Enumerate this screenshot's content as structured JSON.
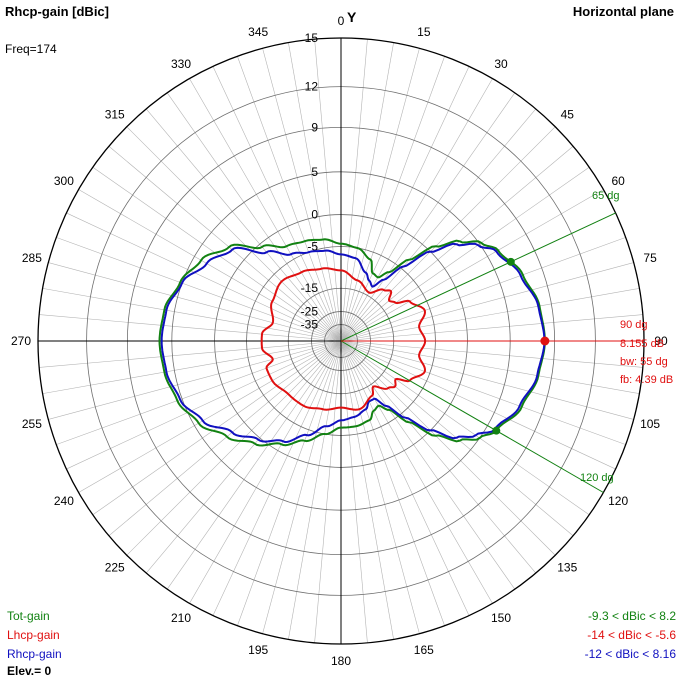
{
  "title": "Rhcp-gain [dBic]",
  "plane_label": "Horizontal plane",
  "freq_label": "Freq=174",
  "elev_label": "Elev.= 0",
  "y_axis_label": "Y",
  "colors": {
    "tot": "#128212",
    "lhcp": "#e01010",
    "rhcp": "#1010c0",
    "grid": "#b4b4b4",
    "axis": "#000000"
  },
  "legend": [
    {
      "name": "Tot-gain",
      "range": "-9.3 < dBic < 8.2",
      "color": "#128212"
    },
    {
      "name": "Lhcp-gain",
      "range": "-14 < dBic < -5.6",
      "color": "#e01010"
    },
    {
      "name": "Rhcp-gain",
      "range": "-12 < dBic < 8.16",
      "color": "#1010c0"
    }
  ],
  "markers": {
    "main": {
      "angle_label": "90 dg",
      "gain_label": "8.155 dB",
      "bw_label": "bw: 55 dg",
      "fb_label": "fb: 4.39 dB",
      "angle": 90
    },
    "lower": {
      "label": "65 dg",
      "angle": 65
    },
    "upper": {
      "label": "120 dg",
      "angle": 120
    }
  },
  "chart_data": {
    "type": "polar",
    "angle_ticks": [
      "0",
      "15",
      "30",
      "45",
      "60",
      "75",
      "90",
      "105",
      "120",
      "135",
      "150",
      "165",
      "180",
      "195",
      "210",
      "225",
      "240",
      "255",
      "270",
      "285",
      "300",
      "315",
      "330",
      "345"
    ],
    "radial_ticks": [
      "15",
      "12",
      "9",
      "5",
      "0",
      "-5",
      "-15",
      "-25",
      "-35"
    ],
    "series": [
      {
        "name": "Tot-gain",
        "angles": [
          0,
          10,
          20,
          25,
          30,
          35,
          40,
          45,
          50,
          55,
          60,
          70,
          80,
          90,
          100,
          110,
          120,
          125,
          130,
          135,
          140,
          145,
          150,
          155,
          160,
          170,
          180,
          190,
          200,
          210,
          220,
          230,
          240,
          250,
          260,
          270,
          280,
          290,
          300,
          310,
          320,
          330,
          340,
          350,
          360
        ],
        "values": [
          -4.5,
          -5,
          -6.5,
          -9,
          -9.3,
          -7,
          -3,
          1,
          3.5,
          5.2,
          6.2,
          7.3,
          8,
          8.2,
          7.9,
          7.2,
          6,
          5,
          3.5,
          1,
          -3,
          -7,
          -9,
          -8.5,
          -7,
          -6.5,
          -6.5,
          -5,
          -3,
          -1,
          1,
          2.8,
          4.5,
          5.5,
          6,
          6.2,
          6,
          5.2,
          4.2,
          2.5,
          -0.5,
          -2.5,
          -3,
          -3.5,
          -4.5
        ]
      },
      {
        "name": "Lhcp-gain",
        "angles": [
          0,
          15,
          30,
          40,
          45,
          50,
          55,
          60,
          70,
          80,
          90,
          100,
          110,
          120,
          125,
          130,
          135,
          145,
          150,
          165,
          180,
          195,
          210,
          225,
          240,
          250,
          255,
          265,
          270,
          275,
          285,
          300,
          315,
          330,
          345,
          360
        ],
        "values": [
          -10,
          -12,
          -14,
          -11,
          -10,
          -12,
          -11,
          -8,
          -6,
          -8,
          -7,
          -8,
          -6,
          -8,
          -11,
          -10,
          -11,
          -14,
          -12,
          -10,
          -11,
          -10,
          -9,
          -9,
          -8,
          -8,
          -10,
          -8,
          -8,
          -8,
          -10,
          -8,
          -7,
          -8,
          -9,
          -10
        ]
      },
      {
        "name": "Rhcp-gain",
        "angles": [
          0,
          10,
          20,
          25,
          30,
          35,
          40,
          45,
          50,
          55,
          60,
          70,
          80,
          90,
          100,
          110,
          120,
          125,
          130,
          135,
          140,
          145,
          150,
          155,
          160,
          170,
          180,
          190,
          200,
          210,
          220,
          230,
          240,
          250,
          260,
          270,
          280,
          290,
          300,
          310,
          320,
          330,
          340,
          350,
          360
        ],
        "values": [
          -6.5,
          -7,
          -9.5,
          -11,
          -12,
          -9,
          -4.5,
          0,
          3,
          4.8,
          6,
          7.1,
          7.9,
          8.16,
          7.8,
          7,
          5.8,
          4.5,
          3,
          0,
          -4,
          -8,
          -11,
          -11,
          -9.5,
          -8.5,
          -8,
          -6.5,
          -4,
          -1.5,
          0.3,
          2,
          4,
          5.2,
          5.8,
          6,
          5.8,
          5,
          3.5,
          2,
          -1.5,
          -4,
          -5,
          -5.5,
          -6.5
        ]
      }
    ]
  }
}
